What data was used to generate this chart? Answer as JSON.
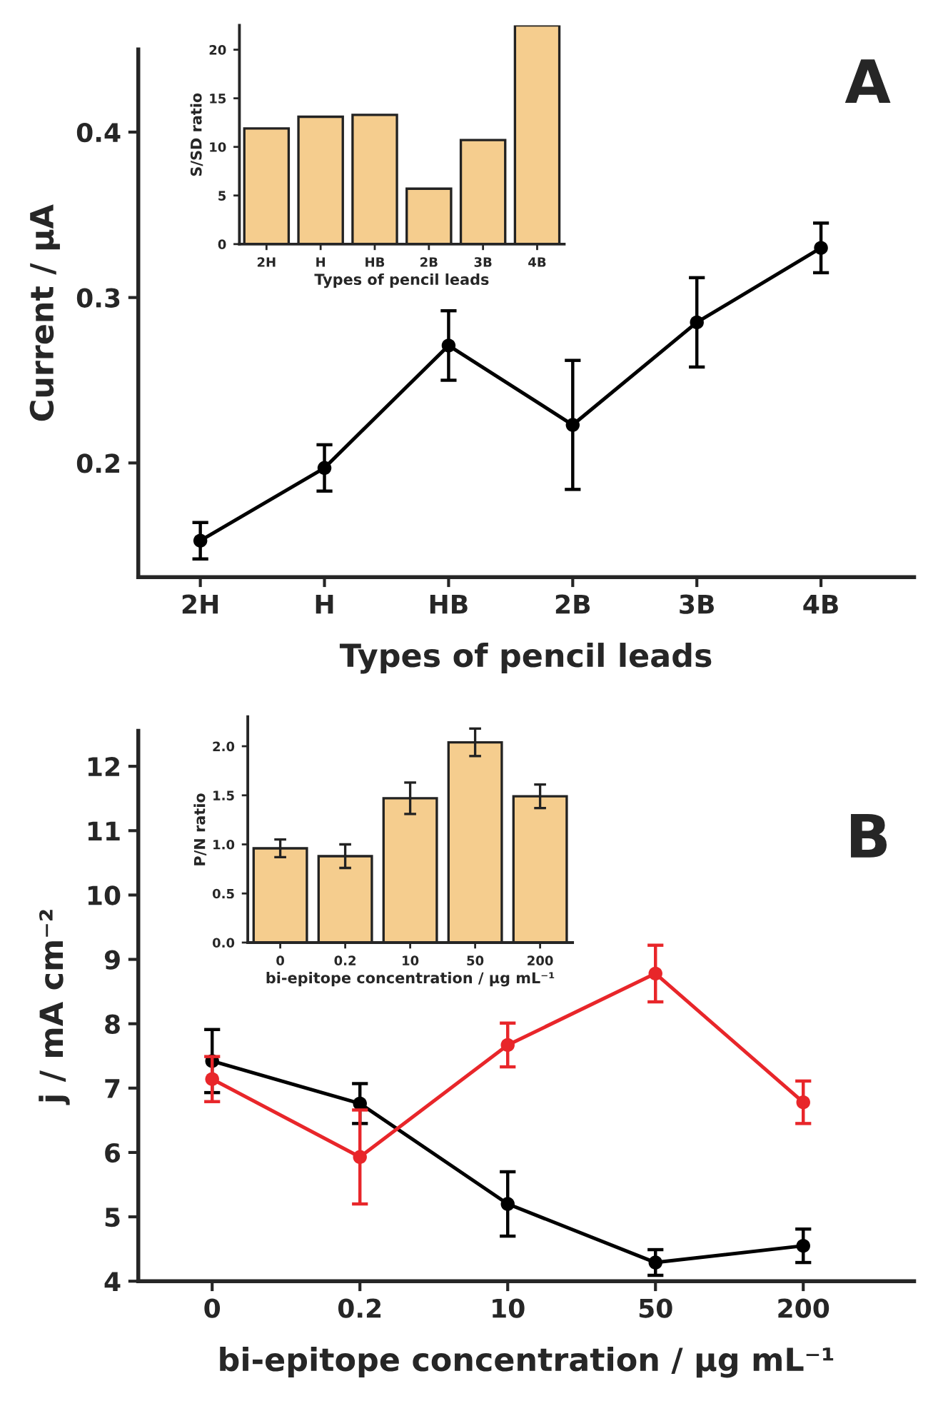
{
  "chart_data": [
    {
      "type": "line",
      "xlabel": "Types of pencil leads",
      "ylabel": "Current / μA",
      "categories": [
        "2H",
        "H",
        "HB",
        "2B",
        "3B",
        "4B"
      ],
      "ylim": [
        0.131,
        0.45
      ],
      "yticks": [
        0.2,
        0.3,
        0.4
      ],
      "marker": "circle",
      "line_style": "solid",
      "grid": false,
      "legend": false,
      "annotations": [
        "A"
      ],
      "series": [
        {
          "color": "#000000",
          "values": [
            0.153,
            0.197,
            0.271,
            0.223,
            0.285,
            0.33
          ],
          "errors": [
            0.011,
            0.014,
            0.021,
            0.039,
            0.027,
            0.015
          ]
        }
      ]
    },
    {
      "type": "bar",
      "xlabel": "Types of pencil leads",
      "ylabel": "S/SD ratio",
      "categories": [
        "2H",
        "H",
        "HB",
        "2B",
        "3B",
        "4B"
      ],
      "ylim": [
        0,
        22.5
      ],
      "yticks": [
        0,
        5,
        10,
        15,
        20
      ],
      "grid": false,
      "legend": false,
      "series": [
        {
          "color": "#f5cd8e",
          "values": [
            11.9,
            13.1,
            13.3,
            5.7,
            10.7,
            22.5
          ]
        }
      ]
    },
    {
      "type": "line",
      "xlabel": "bi-epitope concentration / μg mL⁻¹",
      "ylabel": "j / mA cm⁻²",
      "categories": [
        "0",
        "0.2",
        "10",
        "50",
        "200"
      ],
      "ylim": [
        4,
        12.55
      ],
      "yticks": [
        4,
        5,
        6,
        7,
        8,
        9,
        10,
        11,
        12
      ],
      "marker": "circle",
      "line_style": "solid",
      "grid": false,
      "legend": false,
      "annotations": [
        "B"
      ],
      "series": [
        {
          "color": "#000000",
          "values": [
            7.42,
            6.76,
            5.2,
            4.29,
            4.55
          ],
          "errors": [
            0.49,
            0.31,
            0.5,
            0.2,
            0.26
          ]
        },
        {
          "color": "#e8262a",
          "values": [
            7.14,
            5.93,
            7.67,
            8.78,
            6.78
          ],
          "errors": [
            0.35,
            0.73,
            0.34,
            0.44,
            0.33
          ]
        }
      ]
    },
    {
      "type": "bar",
      "xlabel": "bi-epitope concentration / μg mL⁻¹",
      "ylabel": "P/N ratio",
      "categories": [
        "0",
        "0.2",
        "10",
        "50",
        "200"
      ],
      "ylim": [
        0,
        2.3
      ],
      "yticks": [
        {
          "value": 0,
          "label": "0.0"
        },
        0.5,
        {
          "value": 1,
          "label": "1.0"
        },
        1.5,
        {
          "value": 2,
          "label": "2.0"
        }
      ],
      "grid": false,
      "legend": false,
      "series": [
        {
          "color": "#f5cd8e",
          "values": [
            0.96,
            0.88,
            1.47,
            2.04,
            1.49
          ],
          "errors": [
            0.09,
            0.12,
            0.16,
            0.14,
            0.12
          ]
        }
      ]
    }
  ]
}
